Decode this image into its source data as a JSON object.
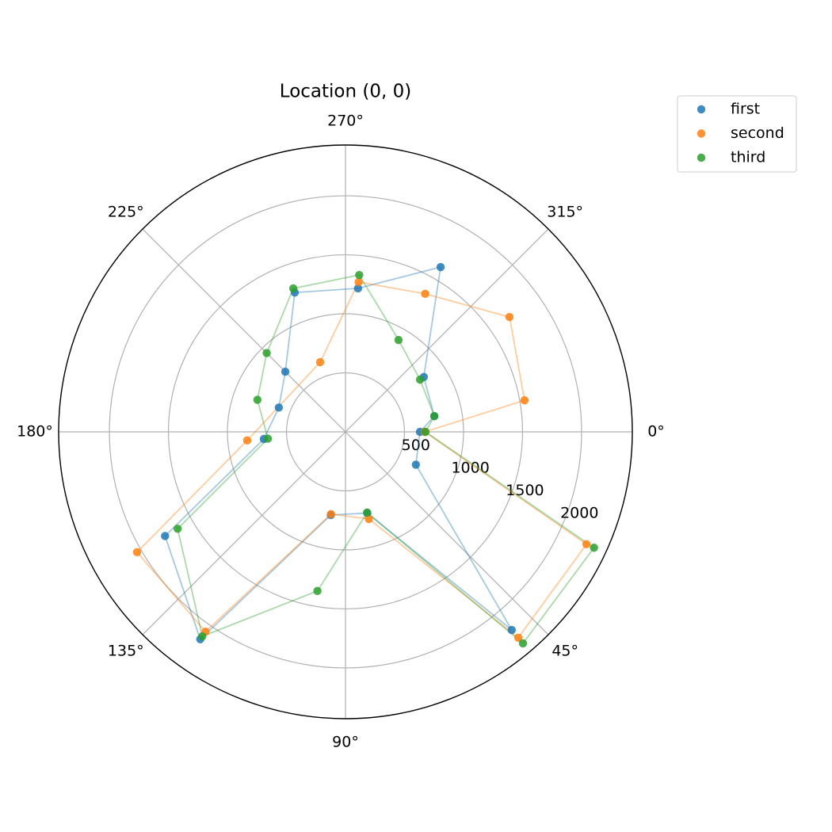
{
  "chart_data": {
    "type": "polar",
    "title": "Location (0, 0)",
    "theta_zero": "E",
    "theta_direction": "clockwise",
    "xticks": [
      {
        "value": 0,
        "label": "0°"
      },
      {
        "value": 45,
        "label": "45°"
      },
      {
        "value": 90,
        "label": "90°"
      },
      {
        "value": 135,
        "label": "135°"
      },
      {
        "value": 180,
        "label": "180°"
      },
      {
        "value": 225,
        "label": "225°"
      },
      {
        "value": 270,
        "label": "270°"
      },
      {
        "value": 315,
        "label": "315°"
      }
    ],
    "ylim": [
      0,
      2430
    ],
    "yticks": [
      500,
      1000,
      1500,
      2000
    ],
    "grid": true,
    "legend": "upper right",
    "series": [
      {
        "name": "first",
        "color": "#1f77b4",
        "theta": [
          0,
          25,
          50,
          75,
          100,
          125,
          150,
          175,
          200,
          225,
          250,
          275,
          300,
          325,
          350
        ],
        "values": [
          631,
          658,
          2191,
          713,
          715,
          2145,
          1765,
          694,
          601,
          721,
          1256,
          1220,
          1612,
          810,
          764
        ]
      },
      {
        "name": "second",
        "color": "#ff7f0e",
        "theta": [
          0,
          25,
          50,
          75,
          100,
          125,
          150,
          175,
          250,
          275,
          300,
          325,
          350
        ],
        "values": [
          671,
          2252,
          2277,
          764,
          708,
          2067,
          2039,
          836,
          628,
          1274,
          1350,
          1696,
          1540
        ]
      },
      {
        "name": "third",
        "color": "#2ca02c",
        "theta": [
          0,
          25,
          50,
          75,
          100,
          125,
          150,
          175,
          200,
          225,
          250,
          275,
          300,
          325,
          350
        ],
        "values": [
          678,
          2323,
          2339,
          708,
          1369,
          2115,
          1642,
          660,
          794,
          944,
          1293,
          1334,
          899,
          771,
          764
        ]
      }
    ]
  }
}
